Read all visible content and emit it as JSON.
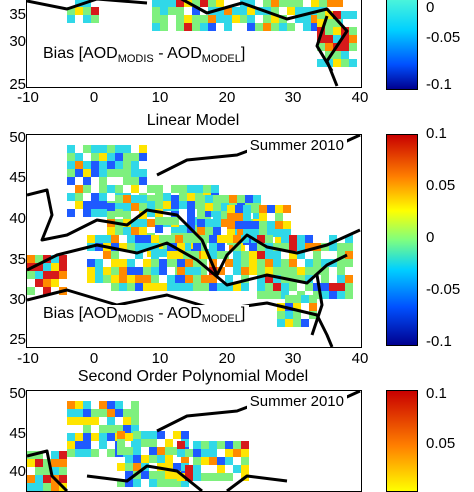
{
  "chart_data": [
    {
      "type": "heatmap",
      "title": "",
      "season": "",
      "bias_label": {
        "prefix": "Bias [AOD",
        "sub1": "MODIS",
        "mid": " - AOD",
        "sub2": "MODEL",
        "suffix": "]"
      },
      "yticks": [
        "35",
        "30",
        "25"
      ],
      "xticks": [
        "-10",
        "0",
        "10",
        "20",
        "30",
        "40"
      ],
      "colorbar_ticks": [
        "0",
        "-0.05",
        "-0.1"
      ],
      "xlim": [
        -10,
        40
      ],
      "ylim": [
        25,
        50
      ],
      "clim": [
        -0.1,
        0.1
      ]
    },
    {
      "type": "heatmap",
      "title": "Linear Model",
      "season": "Summer 2010",
      "bias_label": {
        "prefix": "Bias [AOD",
        "sub1": "MODIS",
        "mid": " - AOD",
        "sub2": "MODEL",
        "suffix": "]"
      },
      "yticks": [
        "50",
        "45",
        "40",
        "35",
        "30",
        "25"
      ],
      "xticks": [
        "-10",
        "0",
        "10",
        "20",
        "30",
        "40"
      ],
      "colorbar_ticks": [
        "0.1",
        "0.05",
        "0",
        "-0.05",
        "-0.1"
      ],
      "xlim": [
        -10,
        40
      ],
      "ylim": [
        25,
        50
      ],
      "clim": [
        -0.1,
        0.1
      ]
    },
    {
      "type": "heatmap",
      "title": "Second Order Polynomial Model",
      "season": "Summer 2010",
      "yticks": [
        "50",
        "45",
        "40"
      ],
      "colorbar_ticks": [
        "0.1",
        "0.05"
      ],
      "xlim": [
        -10,
        40
      ],
      "ylim": [
        25,
        50
      ],
      "clim": [
        -0.1,
        0.1
      ]
    }
  ],
  "colors": {
    "coast": "#000000",
    "blue": "#1e5aff",
    "cyan": "#30d8e8",
    "green": "#7ef07e",
    "yellow": "#ffe400",
    "orange": "#ff8a00",
    "red": "#d61a1a"
  }
}
